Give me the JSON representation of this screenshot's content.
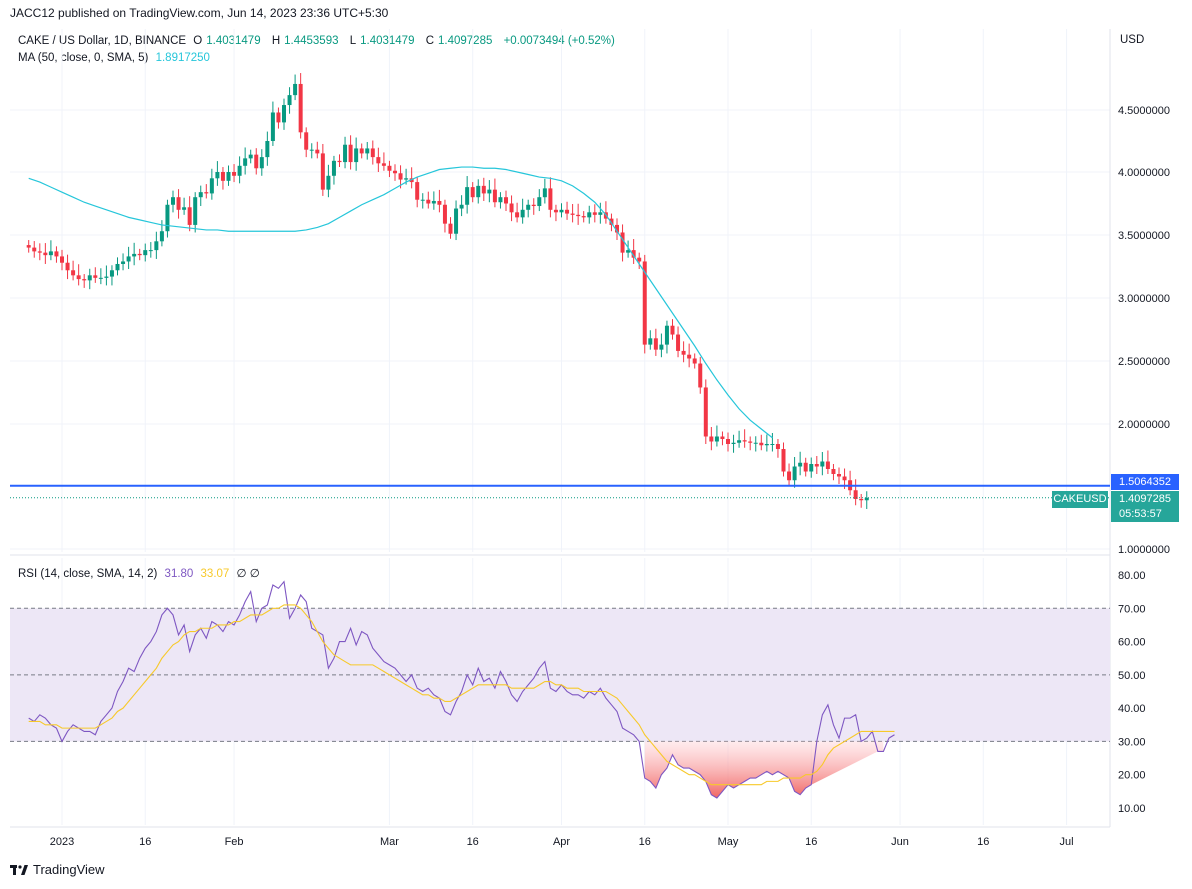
{
  "header": {
    "published": "JACC12 published on TradingView.com, Jun 14, 2023 23:36 UTC+5:30"
  },
  "legend": {
    "symbol": "CAKE / US Dollar, 1D, BINANCE",
    "open_label": "O",
    "open": "1.4031479",
    "high_label": "H",
    "high": "1.4453593",
    "low_label": "L",
    "low": "1.4031479",
    "close_label": "C",
    "close": "1.4097285",
    "change": "+0.0073494 (+0.52%)",
    "ma_label": "MA (50, close, 0, SMA, 5)",
    "ma_value": "1.8917250",
    "rsi_label": "RSI (14, close, SMA, 14, 2)",
    "rsi_value": "31.80",
    "rsi_ma_value": "33.07",
    "rsi_extra": "∅ ∅"
  },
  "axis": {
    "currency": "USD",
    "hline_label": "1.5064352",
    "symbol_tag": "CAKEUSD",
    "last_price": "1.4097285",
    "countdown": "05:53:57"
  },
  "footer": {
    "brand": "TradingView"
  },
  "colors": {
    "up": "#089981",
    "down": "#f23645",
    "ma": "#26c6da",
    "hline": "#2962ff",
    "rsi": "#7e57c2",
    "rsi_ma": "#f7c92a",
    "rsi_band": "#ede7f6"
  },
  "chart_data": [
    {
      "type": "candlestick",
      "title": "CAKE / US Dollar, 1D, BINANCE",
      "ylabel": "USD",
      "ylim": [
        0.9,
        4.9
      ],
      "yticks": [
        "1.0000000",
        "2.0000000",
        "2.5000000",
        "3.0000000",
        "3.5000000",
        "4.0000000",
        "4.5000000"
      ],
      "x_tick_labels": [
        "2023",
        "16",
        "Feb",
        "Mar",
        "16",
        "Apr",
        "16",
        "May",
        "16",
        "Jun",
        "16",
        "Jul"
      ],
      "x_tick_days": [
        0,
        15,
        31,
        59,
        74,
        90,
        105,
        120,
        135,
        151,
        166,
        181
      ],
      "start_day": -6,
      "close": [
        3.4,
        3.37,
        3.36,
        3.34,
        3.37,
        3.33,
        3.28,
        3.22,
        3.18,
        3.15,
        3.14,
        3.18,
        3.16,
        3.16,
        3.17,
        3.22,
        3.27,
        3.29,
        3.33,
        3.35,
        3.34,
        3.38,
        3.38,
        3.45,
        3.53,
        3.74,
        3.8,
        3.7,
        3.72,
        3.58,
        3.8,
        3.84,
        3.83,
        3.95,
        4.0,
        3.93,
        4.0,
        3.97,
        4.05,
        4.11,
        4.14,
        4.03,
        4.12,
        4.25,
        4.48,
        4.4,
        4.54,
        4.62,
        4.71,
        4.32,
        4.18,
        4.18,
        4.15,
        3.86,
        3.97,
        4.09,
        4.08,
        4.22,
        4.08,
        4.19,
        4.15,
        4.19,
        4.12,
        4.07,
        4.05,
        4.01,
        3.99,
        3.94,
        3.95,
        3.92,
        3.78,
        3.78,
        3.75,
        3.77,
        3.74,
        3.59,
        3.51,
        3.71,
        3.74,
        3.88,
        3.8,
        3.89,
        3.83,
        3.86,
        3.76,
        3.8,
        3.75,
        3.68,
        3.64,
        3.7,
        3.74,
        3.73,
        3.8,
        3.87,
        3.7,
        3.68,
        3.7,
        3.67,
        3.66,
        3.65,
        3.64,
        3.68,
        3.66,
        3.68,
        3.63,
        3.58,
        3.52,
        3.36,
        3.38,
        3.32,
        3.29,
        2.63,
        2.68,
        2.59,
        2.63,
        2.78,
        2.71,
        2.58,
        2.55,
        2.52,
        2.48,
        2.29,
        1.9,
        1.86,
        1.9,
        1.88,
        1.84,
        1.85,
        1.87,
        1.86,
        1.85,
        1.85,
        1.83,
        1.84,
        1.84,
        1.8,
        1.62,
        1.55,
        1.66,
        1.69,
        1.62,
        1.68,
        1.66,
        1.7,
        1.64,
        1.6,
        1.58,
        1.55,
        1.47,
        1.4,
        1.39,
        1.41
      ],
      "series": [
        {
          "name": "MA (50, close, 0, SMA, 5)",
          "start_day": -6,
          "values": [
            3.95,
            3.92,
            3.88,
            3.84,
            3.8,
            3.76,
            3.73,
            3.7,
            3.67,
            3.64,
            3.62,
            3.6,
            3.58,
            3.57,
            3.56,
            3.55,
            3.54,
            3.54,
            3.53,
            3.53,
            3.53,
            3.53,
            3.53,
            3.53,
            3.53,
            3.54,
            3.56,
            3.59,
            3.64,
            3.69,
            3.74,
            3.78,
            3.82,
            3.87,
            3.92,
            3.96,
            3.99,
            4.02,
            4.03,
            4.04,
            4.04,
            4.03,
            4.03,
            4.02,
            4.0,
            3.98,
            3.96,
            3.95,
            3.93,
            3.89,
            3.83,
            3.76,
            3.66,
            3.53,
            3.4,
            3.27,
            3.14,
            3.01,
            2.88,
            2.75,
            2.62,
            2.48,
            2.35,
            2.23,
            2.12,
            2.03,
            1.96,
            1.89
          ],
          "step_days": 2
        }
      ],
      "hline": 1.5064352,
      "last_price": 1.4097285
    },
    {
      "type": "line",
      "title": "RSI (14, close, SMA, 14, 2)",
      "ylim": [
        5,
        82
      ],
      "yticks": [
        "10.00",
        "20.00",
        "30.00",
        "40.00",
        "50.00",
        "60.00",
        "70.00",
        "80.00"
      ],
      "bands": [
        30,
        50,
        70
      ],
      "start_day": -6,
      "series": [
        {
          "name": "RSI",
          "values": [
            37,
            36,
            38,
            37,
            35,
            34,
            30,
            33,
            35,
            34,
            33,
            33,
            32,
            36,
            38,
            40,
            45,
            48,
            52,
            51,
            55,
            58,
            60,
            63,
            68,
            70,
            68,
            62,
            65,
            57,
            62,
            64,
            61,
            66,
            65,
            63,
            66,
            65,
            68,
            72,
            75,
            66,
            70,
            71,
            77,
            76,
            78,
            67,
            70,
            74,
            72,
            64,
            63,
            62,
            52,
            55,
            60,
            60,
            64,
            59,
            63,
            62,
            58,
            56,
            54,
            53,
            52,
            50,
            48,
            50,
            46,
            45,
            46,
            44,
            43,
            39,
            38,
            42,
            45,
            50,
            47,
            52,
            48,
            49,
            46,
            51,
            48,
            44,
            42,
            45,
            47,
            49,
            52,
            54,
            46,
            45,
            47,
            45,
            44,
            44,
            43,
            45,
            44,
            46,
            43,
            41,
            39,
            34,
            33,
            32,
            30,
            19,
            18,
            16,
            20,
            22,
            26,
            23,
            22,
            22,
            21,
            20,
            18,
            14,
            13,
            15,
            17,
            16,
            17,
            18,
            19,
            19,
            20,
            21,
            20,
            21,
            20,
            19,
            15,
            14,
            16,
            17,
            30,
            38,
            41,
            35,
            31,
            37,
            37,
            38,
            30,
            31,
            33,
            27,
            27,
            31,
            32
          ]
        },
        {
          "name": "RSI MA",
          "values": [
            36,
            36,
            36,
            35,
            35,
            35,
            34,
            34,
            34,
            34,
            34,
            34,
            34,
            35,
            36,
            37,
            39,
            40,
            42,
            44,
            46,
            48,
            50,
            52,
            55,
            57,
            59,
            60,
            62,
            63,
            63,
            64,
            64,
            64,
            65,
            65,
            65,
            66,
            66,
            67,
            68,
            68,
            68,
            69,
            70,
            70,
            71,
            71,
            71,
            70,
            68,
            66,
            63,
            60,
            58,
            56,
            55,
            54,
            53,
            53,
            53,
            53,
            53,
            52,
            51,
            50,
            49,
            48,
            47,
            46,
            45,
            44,
            44,
            43,
            43,
            42,
            42,
            43,
            44,
            45,
            46,
            47,
            47,
            47,
            47,
            47,
            47,
            46,
            46,
            46,
            46,
            46,
            47,
            48,
            48,
            47,
            47,
            46,
            46,
            46,
            45,
            45,
            45,
            45,
            45,
            44,
            43,
            41,
            39,
            37,
            35,
            32,
            30,
            28,
            26,
            24,
            23,
            22,
            21,
            20,
            20,
            19,
            18,
            17,
            17,
            17,
            17,
            17,
            17,
            17,
            17,
            17,
            17,
            18,
            18,
            18,
            19,
            19,
            19,
            19,
            20,
            20,
            21,
            23,
            26,
            28,
            29,
            30,
            31,
            32,
            33,
            33,
            33,
            33,
            33,
            33,
            33
          ]
        }
      ],
      "oversold_fill_range": [
        30,
        10
      ]
    }
  ]
}
